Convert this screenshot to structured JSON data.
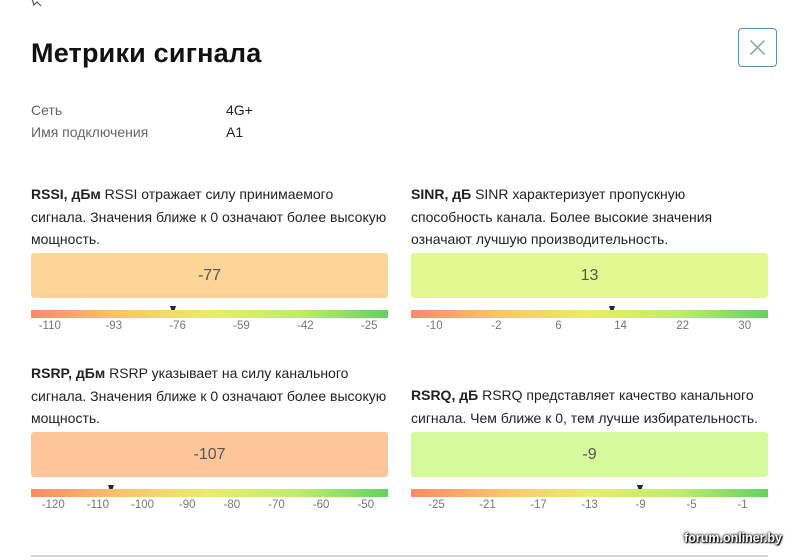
{
  "dialog": {
    "title": "Метрики сигнала",
    "close_icon": "close-icon"
  },
  "info": [
    {
      "label": "Сеть",
      "value": "4G+"
    },
    {
      "label": "Имя подключения",
      "value": "A1"
    }
  ],
  "metrics": {
    "rssi": {
      "name": "RSSI, дБм",
      "description": " RSSI отражает силу принимаемого сигнала. Значения ближе к 0 означают более высокую мощность.",
      "value": "-77",
      "value_number": -77,
      "range": [
        -115,
        -20
      ],
      "box_color": "#fdd597",
      "ticks": [
        "-110",
        "-93",
        "-76",
        "-59",
        "-42",
        "-25"
      ],
      "tick_values": [
        -110,
        -93,
        -76,
        -59,
        -42,
        -25
      ]
    },
    "sinr": {
      "name": "SINR, дБ",
      "description": " SINR характеризует пропускную способность канала. Более высокие значения означают лучшую производительность.",
      "value": "13",
      "value_number": 13,
      "range": [
        -13,
        33
      ],
      "box_color": "#e3f890",
      "ticks": [
        "-10",
        "-2",
        "6",
        "14",
        "22",
        "30"
      ],
      "tick_values": [
        -10,
        -2,
        6,
        14,
        22,
        30
      ]
    },
    "rsrp": {
      "name": "RSRP, дБм",
      "description": " RSRP указывает на силу канального сигнала. Значения ближе к 0 означают более высокую мощность.",
      "value": "-107",
      "value_number": -107,
      "range": [
        -125,
        -45
      ],
      "box_color": "#fdc69a",
      "ticks": [
        "-120",
        "-110",
        "-100",
        "-90",
        "-80",
        "-70",
        "-60",
        "-50"
      ],
      "tick_values": [
        -120,
        -110,
        -100,
        -90,
        -80,
        -70,
        -60,
        -50
      ]
    },
    "rsrq": {
      "name": "RSRQ, дБ",
      "description": " RSRQ представляет качество канального сигнала. Чем ближе к 0, тем лучше избирательность.",
      "value": "-9",
      "value_number": -9,
      "range": [
        -27,
        1
      ],
      "box_color": "#d5f99b",
      "ticks": [
        "-25",
        "-21",
        "-17",
        "-13",
        "-9",
        "-5",
        "-1"
      ],
      "tick_values": [
        -25,
        -21,
        -17,
        -13,
        -9,
        -5,
        -1
      ]
    }
  },
  "colors": {
    "gradient": [
      "#fb8a6a",
      "#fbc46c",
      "#e9ec6c",
      "#bdec6e",
      "#63d262"
    ],
    "marker": "#1d2b3a",
    "close_border": "#5b8fb1"
  },
  "watermark": "forum.onliner.by"
}
